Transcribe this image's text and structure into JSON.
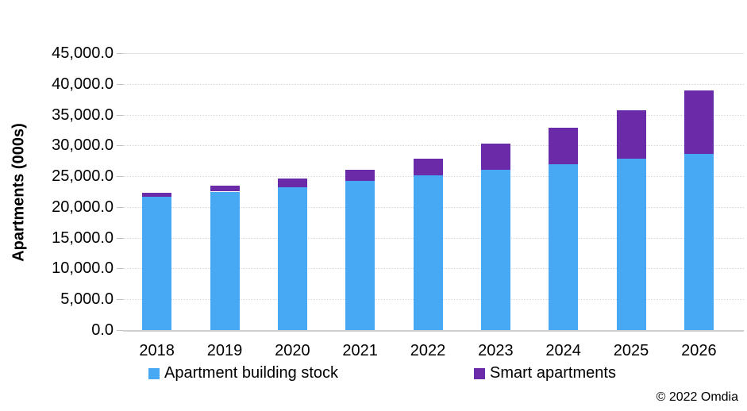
{
  "chart": {
    "y_axis_title": "Apartments (000s)",
    "y_tick_labels": [
      "0.0",
      "5,000.0",
      "10,000.0",
      "15,000.0",
      "20,000.0",
      "25,000.0",
      "30,000.0",
      "35,000.0",
      "40,000.0",
      "45,000.0"
    ],
    "footer_text": "© 2022 Omdia",
    "colors": {
      "stock_blue": "#47a8f3",
      "smart_purple": "#6b2ba8",
      "gridline_gray": "#d9d9d9",
      "axis_line_gray": "#d0cece",
      "text_black": "#000000"
    }
  },
  "chart_data": {
    "type": "bar",
    "stacked": true,
    "title": "",
    "categories": [
      "2018",
      "2019",
      "2020",
      "2021",
      "2022",
      "2023",
      "2024",
      "2025",
      "2026"
    ],
    "series": [
      {
        "name": "Apartment building stock",
        "color": "#47a8f3",
        "values": [
          21700,
          22500,
          23200,
          24200,
          25100,
          26000,
          27000,
          27900,
          28600
        ]
      },
      {
        "name": "Smart apartments",
        "color": "#6b2ba8",
        "values": [
          600,
          950,
          1400,
          1850,
          2800,
          4300,
          5900,
          7800,
          10300
        ]
      }
    ],
    "xlabel": "",
    "ylabel": "Apartments (000s)",
    "ylim": [
      0,
      45000
    ],
    "y_tick_step": 5000,
    "grid": true,
    "legend_position": "bottom",
    "annotations": [
      "© 2022 Omdia"
    ]
  }
}
